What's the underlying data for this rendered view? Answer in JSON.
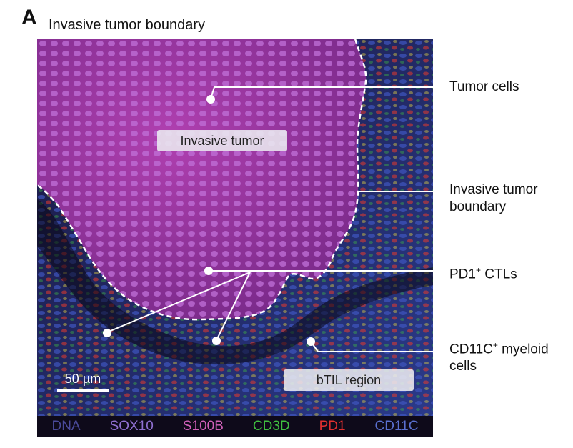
{
  "panel": {
    "letter": "A",
    "title": "Invasive tumor boundary"
  },
  "image_labels": {
    "invasive_tumor": "Invasive tumor",
    "btil_region": "bTIL region",
    "scale_bar": "50 µm"
  },
  "callouts": {
    "tumor_cells": "Tumor cells",
    "boundary_line1": "Invasive tumor",
    "boundary_line2": "boundary",
    "pd1_main": "PD1",
    "pd1_sup": "+",
    "pd1_rest": " CTLs",
    "cd11c_main": "CD11C",
    "cd11c_sup": "+",
    "cd11c_rest": " myeloid",
    "cd11c_line2": "cells"
  },
  "legend": [
    {
      "label": "DNA",
      "color": "#4a4a9a"
    },
    {
      "label": "SOX10",
      "color": "#8f6fd0"
    },
    {
      "label": "S100B",
      "color": "#d060b8"
    },
    {
      "label": "CD3D",
      "color": "#40c040"
    },
    {
      "label": "PD1",
      "color": "#e03030"
    },
    {
      "label": "CD11C",
      "color": "#5a70d0"
    }
  ]
}
